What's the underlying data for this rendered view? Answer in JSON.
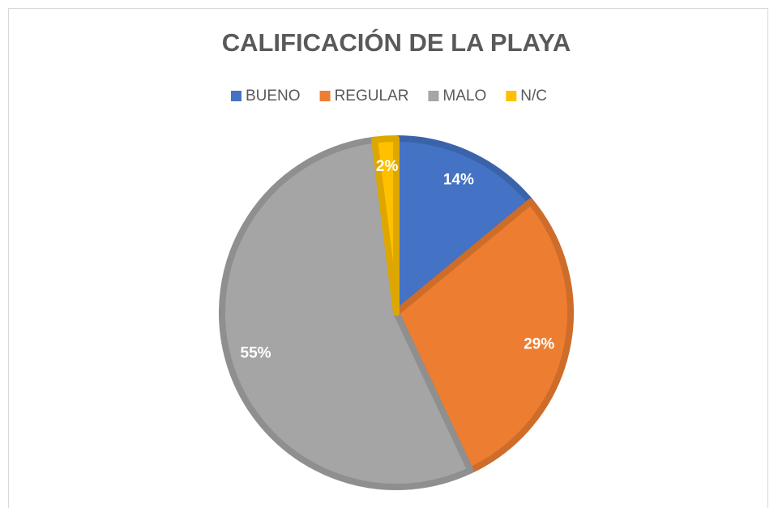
{
  "chart_data": {
    "type": "pie",
    "title": "CALIFICACIÓN DE LA PLAYA",
    "categories": [
      "BUENO",
      "REGULAR",
      "MALO",
      "N/C"
    ],
    "values": [
      14,
      29,
      55,
      2
    ],
    "value_labels": [
      "14%",
      "29%",
      "55%",
      "2%"
    ],
    "colors": [
      "#4472c4",
      "#ed7d31",
      "#a5a5a5",
      "#ffc000"
    ],
    "legend": "top"
  }
}
